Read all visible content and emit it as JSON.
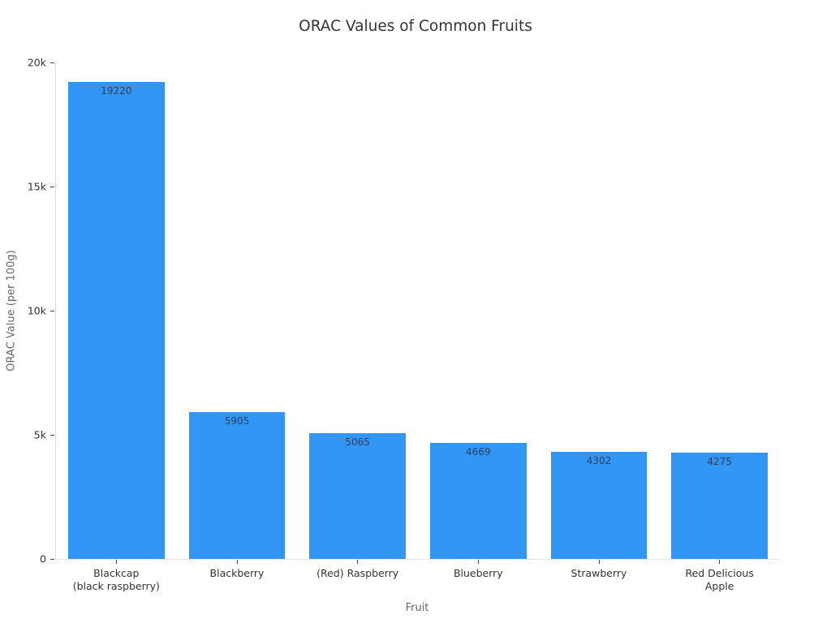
{
  "page": {
    "background": "#ffffff"
  },
  "chart_data": {
    "type": "bar",
    "title": "ORAC Values of Common Fruits",
    "xlabel": "Fruit",
    "ylabel": "ORAC Value (per 100g)",
    "categories": [
      "Blackcap\n(black raspberry)",
      "Blackberry",
      "(Red) Raspberry",
      "Blueberry",
      "Strawberry",
      "Red Delicious\nApple"
    ],
    "values": [
      19220,
      5905,
      5065,
      4669,
      4302,
      4275
    ],
    "ylim": [
      0,
      20000
    ],
    "yticks": [
      {
        "value": 0,
        "label": "0"
      },
      {
        "value": 5000,
        "label": "5k"
      },
      {
        "value": 10000,
        "label": "10k"
      },
      {
        "value": 15000,
        "label": "15k"
      },
      {
        "value": 20000,
        "label": "20k"
      }
    ],
    "grid": false,
    "legend": "none",
    "bar_color": "#3196F5",
    "value_label_color": "#2a3f5f",
    "bar_width_fraction": 0.8
  }
}
